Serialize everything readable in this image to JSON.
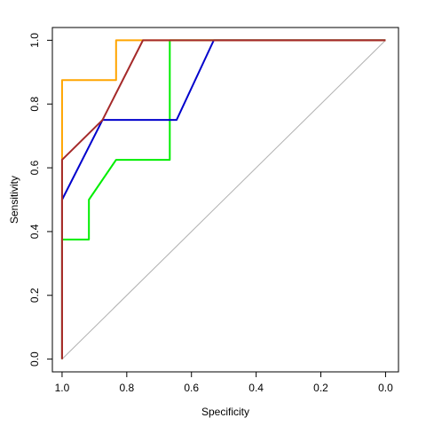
{
  "chart_data": {
    "type": "line",
    "xlabel": "Specificity",
    "ylabel": "Sensitivity",
    "xlim": [
      1.03,
      -0.04
    ],
    "ylim": [
      -0.04,
      1.04
    ],
    "x_reversed": true,
    "grid": false,
    "legend": "none",
    "x_ticks": [
      1.0,
      0.8,
      0.6,
      0.4,
      0.2,
      0.0
    ],
    "x_tick_labels": [
      "1.0",
      "0.8",
      "0.6",
      "0.4",
      "0.2",
      "0.0"
    ],
    "y_ticks": [
      0.0,
      0.2,
      0.4,
      0.6,
      0.8,
      1.0
    ],
    "y_tick_labels": [
      "0.0",
      "0.2",
      "0.4",
      "0.6",
      "0.8",
      "1.0"
    ],
    "reference_line": {
      "from": [
        1,
        0
      ],
      "to": [
        0,
        1
      ],
      "color": "#b0b0b0"
    },
    "series": [
      {
        "color": "#00ee00",
        "points": [
          [
            1.0,
            0.0
          ],
          [
            1.0,
            0.375
          ],
          [
            0.917,
            0.375
          ],
          [
            0.917,
            0.5
          ],
          [
            0.833,
            0.625
          ],
          [
            0.667,
            0.625
          ],
          [
            0.667,
            1.0
          ],
          [
            0.0,
            1.0
          ]
        ]
      },
      {
        "color": "#0000cc",
        "points": [
          [
            1.0,
            0.0
          ],
          [
            1.0,
            0.5
          ],
          [
            0.875,
            0.75
          ],
          [
            0.646,
            0.75
          ],
          [
            0.531,
            1.0
          ],
          [
            0.0,
            1.0
          ]
        ]
      },
      {
        "color": "#ffa500",
        "points": [
          [
            1.0,
            0.0
          ],
          [
            1.0,
            0.875
          ],
          [
            0.833,
            0.875
          ],
          [
            0.833,
            1.0
          ],
          [
            0.0,
            1.0
          ]
        ]
      },
      {
        "color": "#a52a2a",
        "points": [
          [
            1.0,
            0.0
          ],
          [
            1.0,
            0.625
          ],
          [
            0.875,
            0.75
          ],
          [
            0.75,
            1.0
          ],
          [
            0.0,
            1.0
          ]
        ]
      }
    ]
  }
}
